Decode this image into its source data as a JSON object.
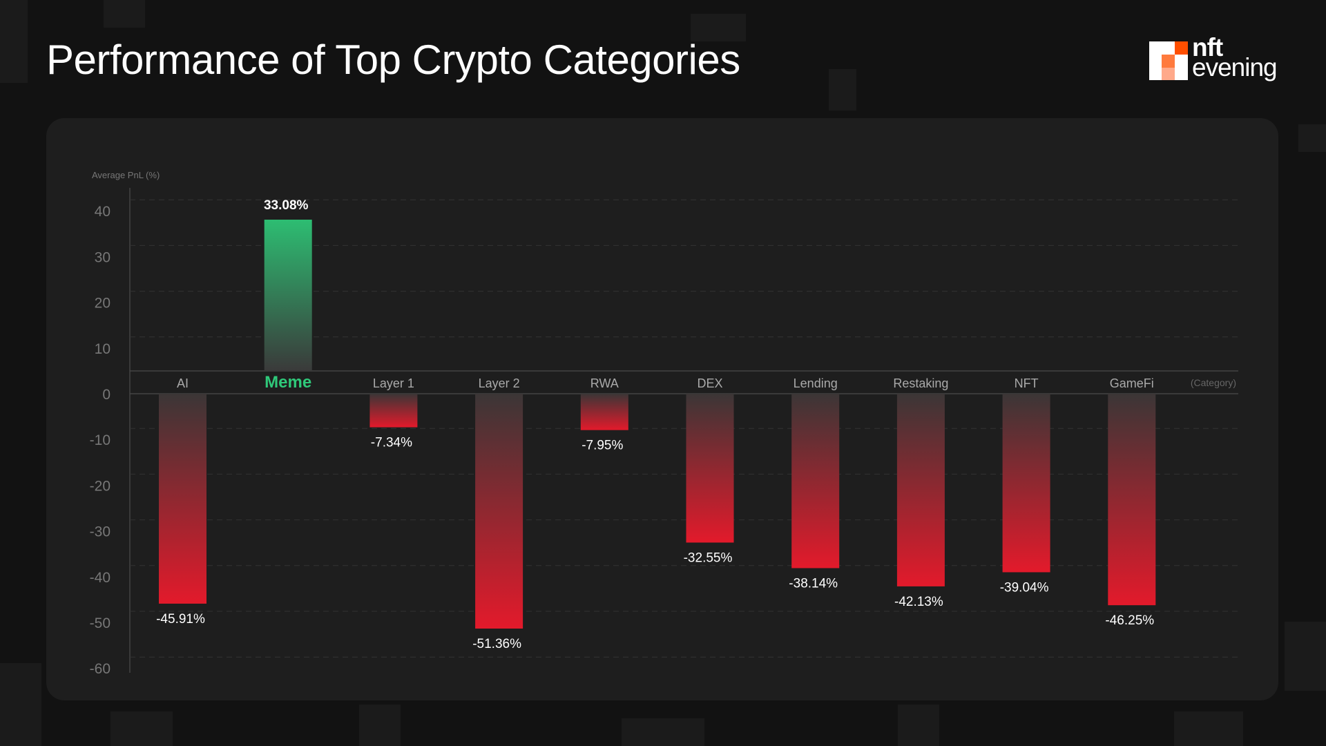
{
  "title": "Performance of Top Crypto Categories",
  "logo": {
    "line1": "nft",
    "line2": "evening",
    "colors": [
      "#ffffff",
      "#ff4f00",
      "#ff7a3d",
      "#ffa98a"
    ]
  },
  "chart_data": {
    "type": "bar",
    "title": "Performance of Top Crypto Categories",
    "ylabel": "Average PnL (%)",
    "xlabel": "(Category)",
    "ylim": [
      -60,
      40
    ],
    "yticks": [
      40,
      30,
      20,
      10,
      0,
      -10,
      -20,
      -30,
      -40,
      -50,
      -60
    ],
    "grid": true,
    "categories": [
      "AI",
      "Meme",
      "Layer 1",
      "Layer 2",
      "RWA",
      "DEX",
      "Lending",
      "Restaking",
      "NFT",
      "GameFi"
    ],
    "values": [
      -45.91,
      33.08,
      -7.34,
      -51.36,
      -7.95,
      -32.55,
      -38.14,
      -42.13,
      -39.04,
      -46.25
    ],
    "data_labels": [
      "-45.91%",
      "33.08%",
      "-7.34%",
      "-51.36%",
      "-7.95%",
      "-32.55%",
      "-38.14%",
      "-42.13%",
      "-39.04%",
      "-46.25%"
    ],
    "highlight": "Meme",
    "colors": {
      "positive": "#2dbd72",
      "negative": "#e01b2b",
      "highlight_label": "#2fc97a"
    }
  }
}
